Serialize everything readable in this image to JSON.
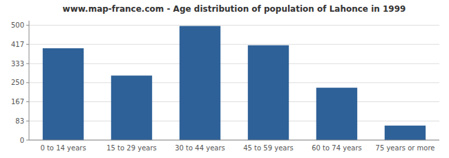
{
  "chart_data": {
    "type": "bar",
    "title": "www.map-france.com - Age distribution of population of Lahonce in 1999",
    "categories": [
      "0 to 14 years",
      "15 to 29 years",
      "30 to 44 years",
      "45 to 59 years",
      "60 to 74 years",
      "75 years or more"
    ],
    "values": [
      400,
      281,
      497,
      413,
      228,
      63
    ],
    "color": "#2e6197",
    "ylim": [
      0,
      520
    ],
    "yticks": [
      0,
      83,
      167,
      250,
      333,
      417,
      500
    ],
    "grid": true
  }
}
